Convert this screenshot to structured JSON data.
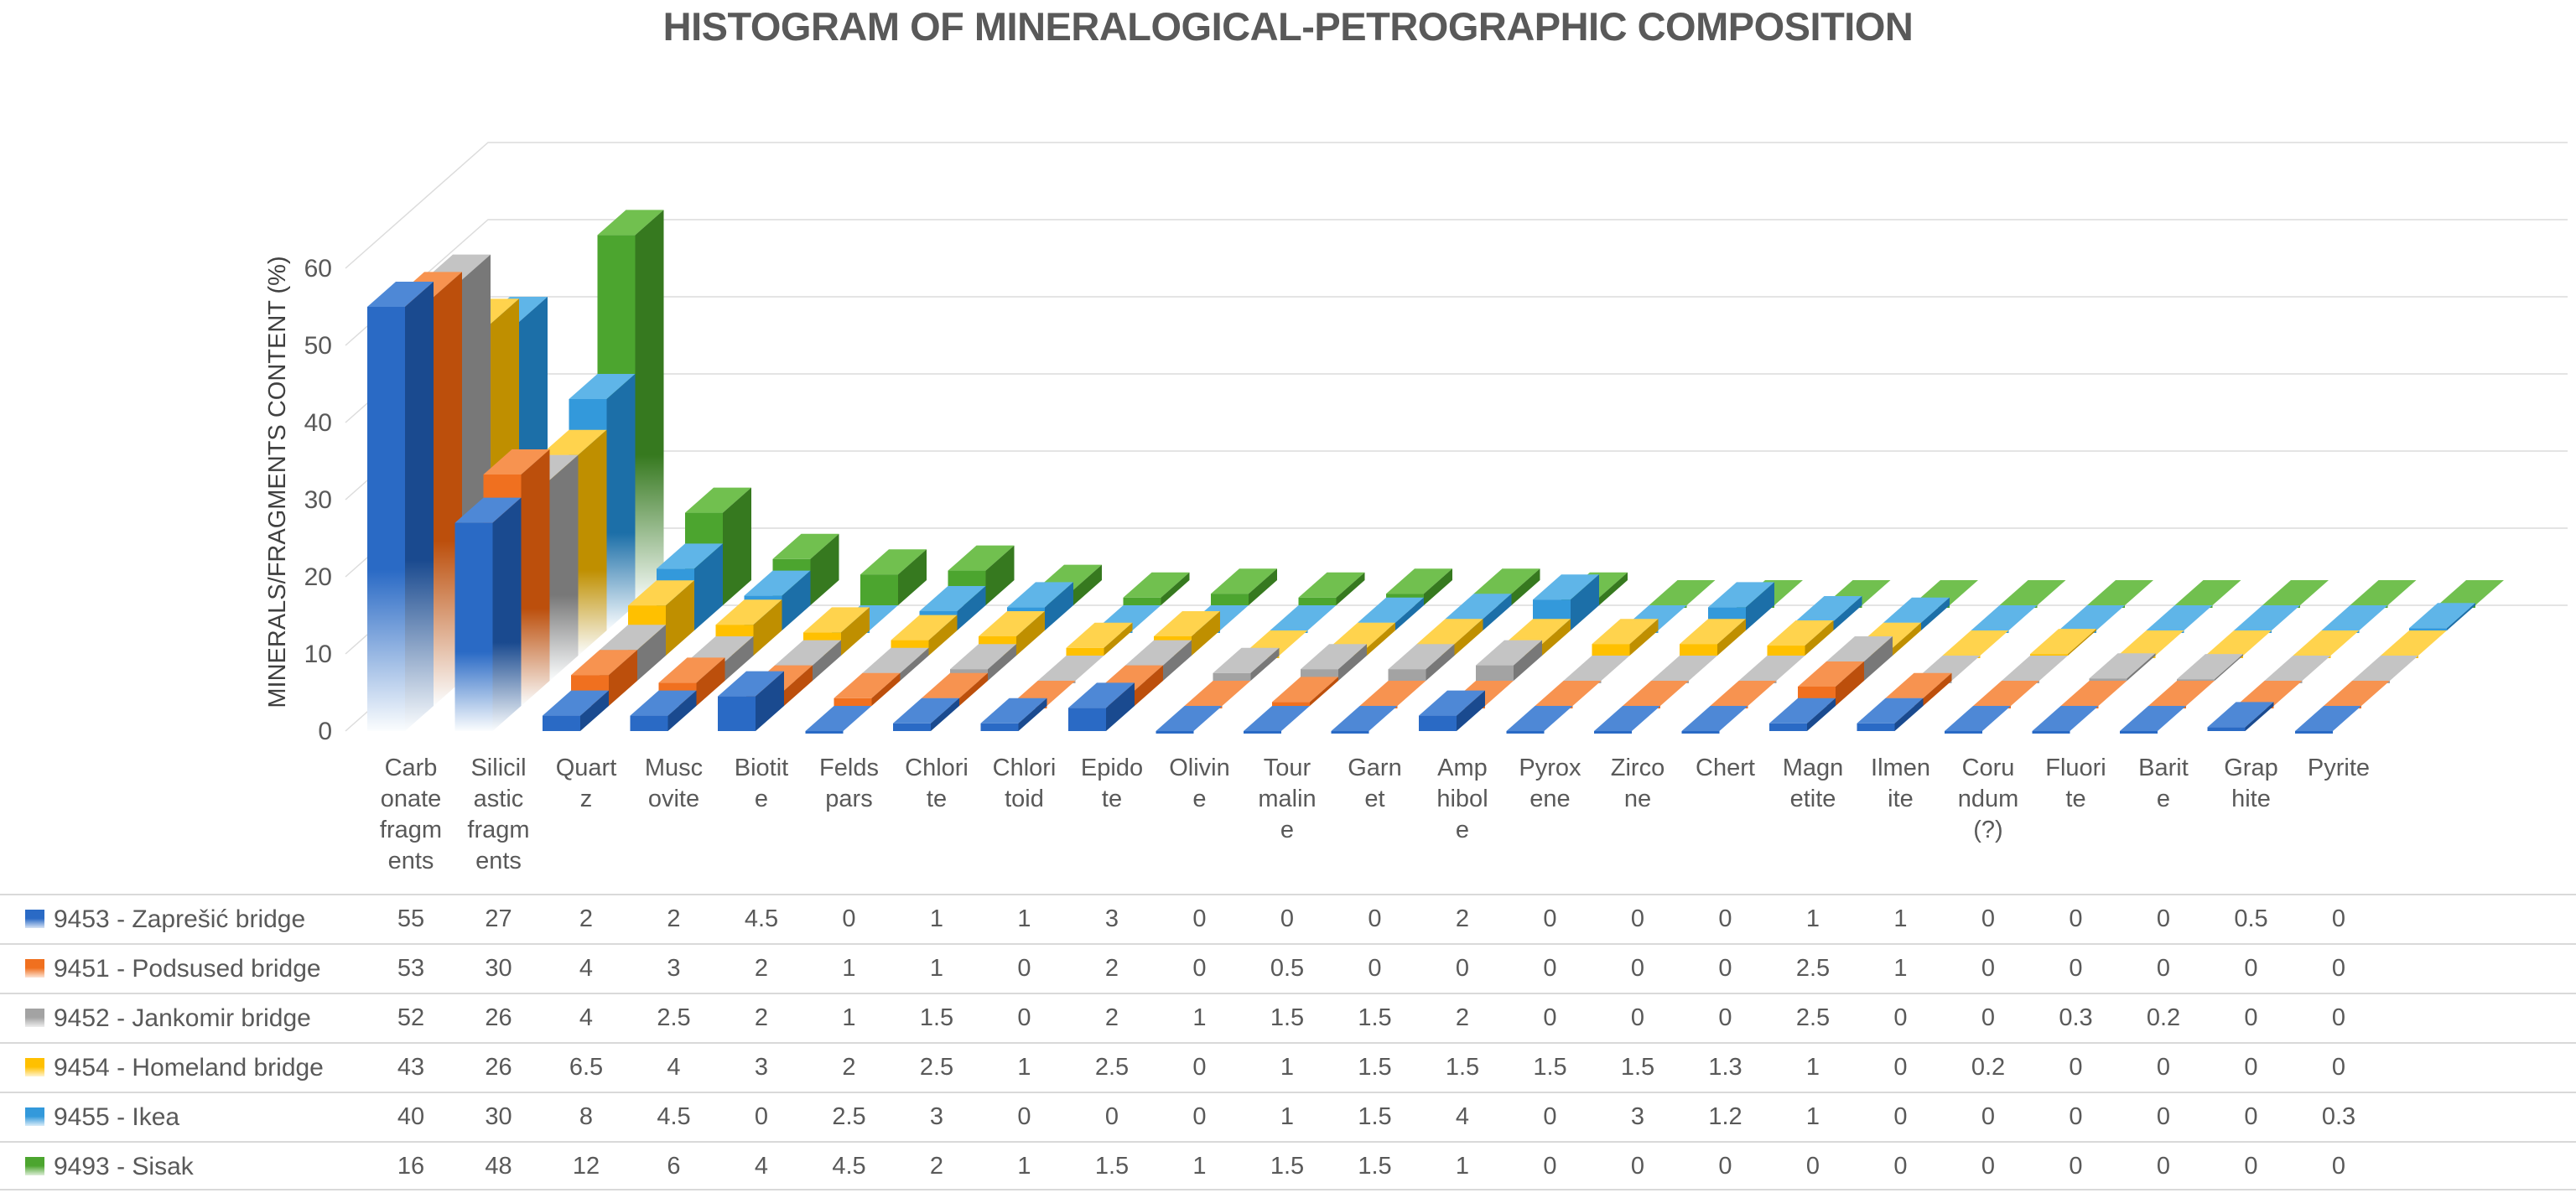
{
  "title": "HISTOGRAM OF MINERALOGICAL-PETROGRAPHIC COMPOSITION",
  "chart_data": {
    "type": "bar",
    "style": "3d-column",
    "title": "HISTOGRAM OF MINERALOGICAL-PETROGRAPHIC COMPOSITION",
    "xlabel": "",
    "ylabel": "MINERALS/FRAGMENTS CONTENT (%)",
    "ylim": [
      0,
      60
    ],
    "yticks": [
      0,
      10,
      20,
      30,
      40,
      50,
      60
    ],
    "grid": true,
    "grid_color": "#dcdcdc",
    "text_color": "#595959",
    "background": "#ffffff",
    "legend_position": "table-left",
    "categories": [
      "Carbonate fragments",
      "Silicilastic fragments",
      "Quartz",
      "Muscovite",
      "Biotite",
      "Feldspars",
      "Chlorite",
      "Chloritoid",
      "Epidote",
      "Olivine",
      "Tourmaline",
      "Garnet",
      "Amphibole",
      "Pyroxene",
      "Zircone",
      "Chert",
      "Magnetite",
      "Ilmenite",
      "Corundum (?)",
      "Fluorite",
      "Barite",
      "Graphite",
      "Pyrite"
    ],
    "category_label_lines": [
      [
        "Carb",
        "onate",
        "fragm",
        "ents"
      ],
      [
        "Silicil",
        "astic",
        "fragm",
        "ents"
      ],
      [
        "Quart",
        "z"
      ],
      [
        "Musc",
        "ovite"
      ],
      [
        "Biotit",
        "e"
      ],
      [
        "Felds",
        "pars"
      ],
      [
        "Chlori",
        "te"
      ],
      [
        "Chlori",
        "toid"
      ],
      [
        "Epido",
        "te"
      ],
      [
        "Olivin",
        "e"
      ],
      [
        "Tour",
        "malin",
        "e"
      ],
      [
        "Garn",
        "et"
      ],
      [
        "Amp",
        "hibol",
        "e"
      ],
      [
        "Pyrox",
        "ene"
      ],
      [
        "Zirco",
        "ne"
      ],
      [
        "Chert"
      ],
      [
        "Magn",
        "etite"
      ],
      [
        "Ilmen",
        "ite"
      ],
      [
        "Coru",
        "ndum",
        "(?)"
      ],
      [
        "Fluori",
        "te"
      ],
      [
        "Barit",
        "e"
      ],
      [
        "Grap",
        "hite"
      ],
      [
        "Pyrite"
      ]
    ],
    "series": [
      {
        "name": "9453 - Zaprešić bridge",
        "color": "#2A6AC5",
        "side": "#1A4A8F",
        "top": "#4E88D6",
        "values": [
          55,
          27,
          2,
          2,
          4.5,
          0,
          1,
          1,
          3,
          0,
          0,
          0,
          2,
          0,
          0,
          0,
          1,
          1,
          0,
          0,
          0,
          0.5,
          0
        ]
      },
      {
        "name": "9451 - Podsused bridge",
        "color": "#F0701F",
        "side": "#BC4F0C",
        "top": "#F79350",
        "values": [
          53,
          30,
          4,
          3,
          2,
          1,
          1,
          0,
          2,
          0,
          0.5,
          0,
          0,
          0,
          0,
          0,
          2.5,
          1,
          0,
          0,
          0,
          0,
          0
        ]
      },
      {
        "name": "9452 - Jankomir bridge",
        "color": "#A3A3A3",
        "side": "#787878",
        "top": "#C4C4C4",
        "values": [
          52,
          26,
          4,
          2.5,
          2,
          1,
          1.5,
          0,
          2,
          1,
          1.5,
          1.5,
          2,
          0,
          0,
          0,
          2.5,
          0,
          0,
          0.3,
          0.2,
          0,
          0
        ]
      },
      {
        "name": "9454 - Homeland bridge",
        "color": "#FFC000",
        "side": "#BF8F00",
        "top": "#FFD34D",
        "values": [
          43,
          26,
          6.5,
          4,
          3,
          2,
          2.5,
          1,
          2.5,
          0,
          1,
          1.5,
          1.5,
          1.5,
          1.5,
          1.3,
          1,
          0,
          0.2,
          0,
          0,
          0,
          0
        ]
      },
      {
        "name": "9455 - Ikea",
        "color": "#3399DB",
        "side": "#1C6FA8",
        "top": "#5FB5E8",
        "values": [
          40,
          30,
          8,
          4.5,
          0,
          2.5,
          3,
          0,
          0,
          0,
          1,
          1.5,
          4,
          0,
          3,
          1.2,
          1,
          0,
          0,
          0,
          0,
          0,
          0.3
        ]
      },
      {
        "name": "9493 - Sisak",
        "color": "#4CA52F",
        "side": "#36791F",
        "top": "#71C04F",
        "values": [
          16,
          48,
          12,
          6,
          4,
          4.5,
          2,
          1,
          1.5,
          1,
          1.5,
          1.5,
          1,
          0,
          0,
          0,
          0,
          0,
          0,
          0,
          0,
          0,
          0
        ]
      }
    ]
  }
}
